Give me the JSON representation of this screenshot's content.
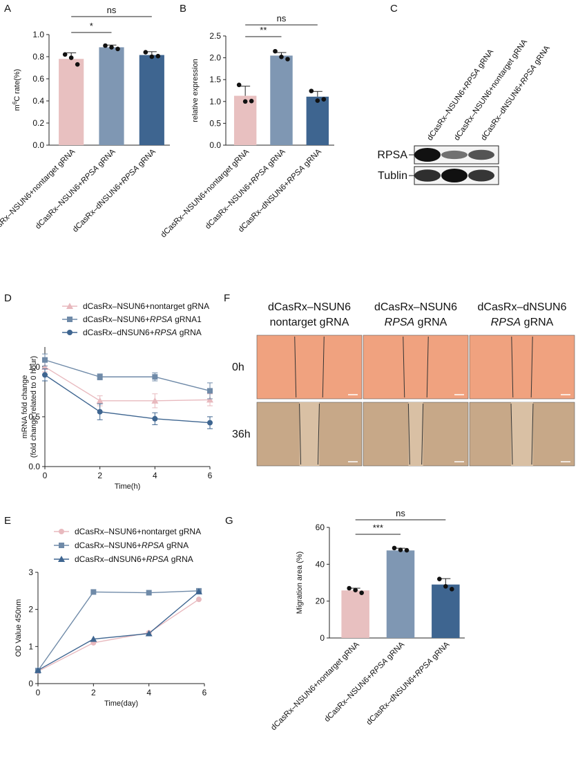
{
  "panels": {
    "A": "A",
    "B": "B",
    "C": "C",
    "D": "D",
    "E": "E",
    "F": "F",
    "G": "G"
  },
  "colors": {
    "pink": "#e8c0c0",
    "blue_mid": "#7f97b3",
    "blue_dark": "#3e6590",
    "line_pink": "#e8b9be",
    "line_mid": "#6f8aa8",
    "line_dark": "#3e6590",
    "wb_bg": "#f4f4f4",
    "scratch_0h": "#f0a27f",
    "scratch_36h": "#c7a888"
  },
  "chart_data": [
    {
      "id": "A",
      "type": "bar",
      "categories": [
        {
          "pre": "dCasRx–NSUN6+nontarget gRNA",
          "it": "",
          "post": ""
        },
        {
          "pre": "dCasRx–NSUN6+",
          "it": "RPSA",
          "post": " gRNA"
        },
        {
          "pre": "dCasRx–dNSUN6+",
          "it": "RPSA",
          "post": " gRNA"
        }
      ],
      "values": [
        0.78,
        0.885,
        0.815
      ],
      "errors": [
        0.055,
        0.02,
        0.03
      ],
      "points": [
        [
          0.82,
          0.79,
          0.73
        ],
        [
          0.9,
          0.885,
          0.87
        ],
        [
          0.84,
          0.8,
          0.805
        ]
      ],
      "ylabel_pre": "m",
      "ylabel_sup": "6",
      "ylabel_post": "C rate(%)",
      "yticks": [
        "0.0",
        "0.2",
        "0.4",
        "0.6",
        "0.8",
        "1.0"
      ],
      "ylim": [
        0,
        1.0
      ],
      "significance": [
        {
          "from": 0,
          "to": 1,
          "label": "*"
        },
        {
          "from": 0,
          "to": 2,
          "label": "ns"
        }
      ]
    },
    {
      "id": "B",
      "type": "bar",
      "categories": [
        {
          "pre": "dCasRx–NSUN6+nontarget gRNA",
          "it": "",
          "post": ""
        },
        {
          "pre": "dCasRx–NSUN6+",
          "it": "RPSA",
          "post": " gRNA"
        },
        {
          "pre": "dCasRx–dNSUN6+",
          "it": "RPSA",
          "post": " gRNA"
        }
      ],
      "values": [
        1.13,
        2.05,
        1.11
      ],
      "errors": [
        0.22,
        0.07,
        0.12
      ],
      "points": [
        [
          1.38,
          1.0,
          1.01
        ],
        [
          2.15,
          2.02,
          1.97
        ],
        [
          1.24,
          1.02,
          1.05
        ]
      ],
      "ylabel": "relative expression",
      "yticks": [
        "0.0",
        "0.5",
        "1.0",
        "1.5",
        "2.0",
        "2.5"
      ],
      "ylim": [
        0,
        2.5
      ],
      "significance": [
        {
          "from": 0,
          "to": 1,
          "label": "**"
        },
        {
          "from": 0,
          "to": 2,
          "label": "ns"
        }
      ]
    },
    {
      "id": "D",
      "type": "line",
      "x": [
        0,
        2,
        4,
        6
      ],
      "xticks": [
        "0",
        "2",
        "4",
        "6"
      ],
      "yticks": [
        "0.0",
        "0.5",
        "1.0"
      ],
      "xlabel": "Time(h)",
      "ylabel_line1": "mRNA fold change",
      "ylabel_line2": "(fold change related to 0 hour)",
      "xlim": [
        0,
        6
      ],
      "ylim": [
        0,
        1.2
      ],
      "series": [
        {
          "pre": "dCasRx–NSUN6+nontarget gRNA",
          "it": "",
          "post": "",
          "marker": "triangle",
          "values": [
            1.0,
            0.66,
            0.66,
            0.67
          ],
          "errors": [
            0.05,
            0.05,
            0.07,
            0.06
          ]
        },
        {
          "pre": "dCasRx–NSUN6+",
          "it": "RPSA",
          "post": " gRNA1",
          "marker": "square",
          "values": [
            1.07,
            0.9,
            0.9,
            0.76
          ],
          "errors": [
            0.06,
            0.03,
            0.04,
            0.08
          ]
        },
        {
          "pre": "dCasRx–dNSUN6+",
          "it": "RPSA",
          "post": " gRNA",
          "marker": "circle",
          "values": [
            0.92,
            0.55,
            0.48,
            0.44
          ],
          "errors": [
            0.06,
            0.08,
            0.06,
            0.06
          ]
        }
      ]
    },
    {
      "id": "E",
      "type": "line",
      "x": [
        0,
        2,
        4,
        5.8
      ],
      "xticks": [
        "0",
        "2",
        "4",
        "6"
      ],
      "yticks": [
        "0",
        "1",
        "2",
        "3"
      ],
      "xlabel": "Time(day)",
      "ylabel": "OD Value 450nm",
      "xlim": [
        0,
        6
      ],
      "ylim": [
        0,
        3
      ],
      "series": [
        {
          "pre": "dCasRx–NSUN6+nontarget gRNA",
          "it": "",
          "post": "",
          "marker": "circle",
          "values": [
            0.33,
            1.1,
            1.37,
            2.27
          ]
        },
        {
          "pre": "dCasRx–NSUN6+",
          "it": "RPSA",
          "post": " gRNA",
          "marker": "square",
          "values": [
            0.35,
            2.47,
            2.45,
            2.5
          ]
        },
        {
          "pre": "dCasRx–dNSUN6+",
          "it": "RPSA",
          "post": " gRNA",
          "marker": "triangle",
          "values": [
            0.36,
            1.2,
            1.35,
            2.48
          ]
        }
      ]
    },
    {
      "id": "G",
      "type": "bar",
      "categories": [
        {
          "pre": "dCasRx–NSUN6+nontarget gRNA",
          "it": "",
          "post": ""
        },
        {
          "pre": "dCasRx–NSUN6+",
          "it": "RPSA",
          "post": " gRNA"
        },
        {
          "pre": "dCasRx–dNSUN6+",
          "it": "RPSA",
          "post": " gRNA"
        }
      ],
      "values": [
        25.8,
        47.5,
        29.0
      ],
      "errors": [
        1.2,
        1.2,
        3.2
      ],
      "points": [
        [
          27.0,
          26.0,
          24.5
        ],
        [
          48.8,
          47.8,
          47.6
        ],
        [
          32.0,
          28.0,
          26.5
        ]
      ],
      "ylabel": "Migration area (%)",
      "yticks": [
        "0",
        "20",
        "40",
        "60"
      ],
      "ylim": [
        0,
        60
      ],
      "significance": [
        {
          "from": 0,
          "to": 1,
          "label": "***"
        },
        {
          "from": 0,
          "to": 2,
          "label": "ns"
        }
      ]
    }
  ],
  "western_blot": {
    "lanes": [
      {
        "pre": "dCasRx–NSUN6+",
        "it": "RPSA",
        "post": " gRNA"
      },
      {
        "pre": "dCasRx–NSUN6+nontarget gRNA",
        "it": "",
        "post": ""
      },
      {
        "pre": "dCasRx–dNSUN6+",
        "it": "RPSA",
        "post": " gRNA"
      }
    ],
    "rows": [
      {
        "label": "RPSA",
        "intensity": [
          1.0,
          0.35,
          0.55
        ]
      },
      {
        "label": "Tublin",
        "intensity": [
          0.8,
          1.0,
          0.75
        ]
      }
    ]
  },
  "scratch": {
    "headers": [
      {
        "line1": "dCasRx–NSUN6",
        "line2_it": "",
        "line2": "nontarget gRNA"
      },
      {
        "line1": "dCasRx–NSUN6",
        "line2_it": "RPSA",
        "line2": " gRNA"
      },
      {
        "line1": "dCasRx–dNSUN6",
        "line2_it": "RPSA",
        "line2": " gRNA"
      }
    ],
    "rows": [
      {
        "label": "0h",
        "gap_fraction": [
          0.28,
          0.24,
          0.2
        ]
      },
      {
        "label": "36h",
        "gap_fraction": [
          0.19,
          0.14,
          0.21
        ]
      }
    ]
  }
}
